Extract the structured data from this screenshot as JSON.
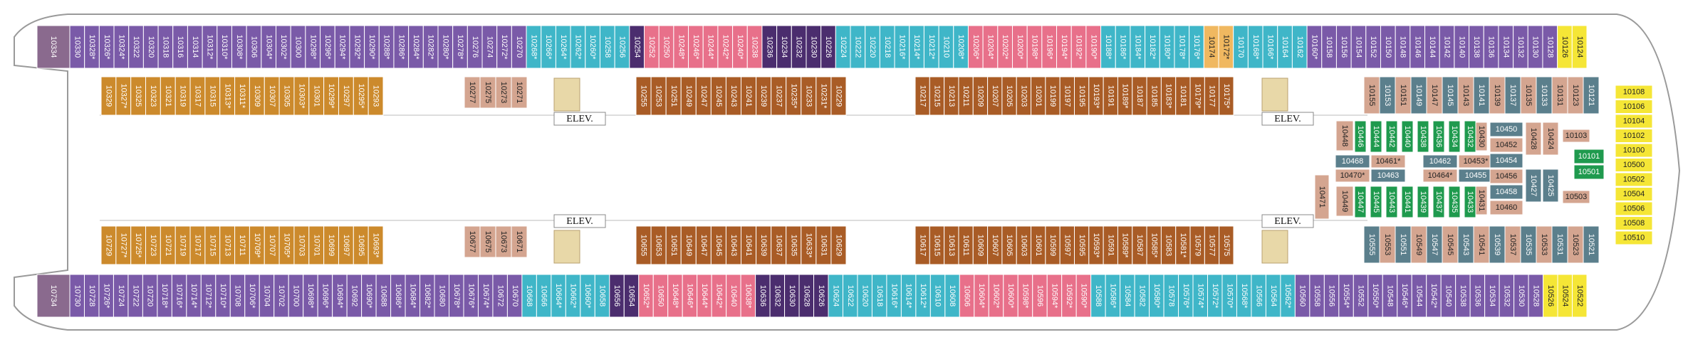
{
  "colors": {
    "purple": "#7a5aa8",
    "teal": "#3fb6c8",
    "pink": "#e8708a",
    "darkpurple": "#4b2d6e",
    "gold": "#cc8a2c",
    "brown": "#a95c26",
    "tan": "#d4a590",
    "slate": "#5b7f8c",
    "green": "#1f9a4e",
    "yellow": "#f5e636",
    "orange": "#f0b860",
    "greypurple": "#8a6a8e",
    "hull": "#9a9a9a"
  },
  "labels": {
    "elev": "ELEV."
  },
  "top_outer": [
    [
      "10330",
      "purple"
    ],
    [
      "10328*",
      "purple"
    ],
    [
      "10326*",
      "purple"
    ],
    [
      "10324*",
      "purple"
    ],
    [
      "10322",
      "purple"
    ],
    [
      "10320",
      "purple"
    ],
    [
      "10318",
      "purple"
    ],
    [
      "10316",
      "purple"
    ],
    [
      "10314",
      "purple"
    ],
    [
      "10312*",
      "purple"
    ],
    [
      "10310*",
      "purple"
    ],
    [
      "10308*",
      "purple"
    ],
    [
      "10306",
      "purple"
    ],
    [
      "10304*",
      "purple"
    ],
    [
      "10302*",
      "purple"
    ],
    [
      "10300",
      "purple"
    ],
    [
      "10298*",
      "purple"
    ],
    [
      "10296*",
      "purple"
    ],
    [
      "10294*",
      "purple"
    ],
    [
      "10292*",
      "purple"
    ],
    [
      "10290*",
      "purple"
    ],
    [
      "10288*",
      "purple"
    ],
    [
      "10286*",
      "purple"
    ],
    [
      "10284*",
      "purple"
    ],
    [
      "10282*",
      "purple"
    ],
    [
      "10280*",
      "purple"
    ],
    [
      "10278*",
      "purple"
    ],
    [
      "10276",
      "purple"
    ],
    [
      "10274",
      "purple"
    ],
    [
      "10272*",
      "purple"
    ],
    [
      "10270",
      "purple"
    ],
    [
      "10268*",
      "teal"
    ],
    [
      "10266*",
      "teal"
    ],
    [
      "10264*",
      "teal"
    ],
    [
      "10262*",
      "teal"
    ],
    [
      "10260*",
      "teal"
    ],
    [
      "10258",
      "teal"
    ],
    [
      "10256",
      "teal"
    ],
    [
      "10254",
      "darkpurple"
    ],
    [
      "10252",
      "pink"
    ],
    [
      "10250",
      "pink"
    ],
    [
      "10248*",
      "pink"
    ],
    [
      "10246*",
      "pink"
    ],
    [
      "10244*",
      "pink"
    ],
    [
      "10242*",
      "pink"
    ],
    [
      "10240*",
      "pink"
    ],
    [
      "10238",
      "pink"
    ],
    [
      "10236",
      "darkpurple"
    ],
    [
      "10234",
      "darkpurple"
    ],
    [
      "10232",
      "darkpurple"
    ],
    [
      "10230",
      "darkpurple"
    ],
    [
      "10226",
      "darkpurple"
    ],
    [
      "10224",
      "teal"
    ],
    [
      "10222",
      "teal"
    ],
    [
      "10220",
      "teal"
    ],
    [
      "10218",
      "teal"
    ],
    [
      "10216*",
      "teal"
    ],
    [
      "10214*",
      "teal"
    ],
    [
      "10212*",
      "teal"
    ],
    [
      "10210",
      "teal"
    ],
    [
      "10208*",
      "teal"
    ],
    [
      "10206*",
      "pink"
    ],
    [
      "10204*",
      "pink"
    ],
    [
      "10202*",
      "pink"
    ],
    [
      "10200*",
      "pink"
    ],
    [
      "10198*",
      "pink"
    ],
    [
      "10196*",
      "pink"
    ],
    [
      "10194*",
      "pink"
    ],
    [
      "10192*",
      "pink"
    ],
    [
      "10190*",
      "pink"
    ],
    [
      "10188*",
      "teal"
    ],
    [
      "10186*",
      "teal"
    ],
    [
      "10184*",
      "teal"
    ],
    [
      "10182*",
      "teal"
    ],
    [
      "10180*",
      "teal"
    ],
    [
      "10178*",
      "teal"
    ],
    [
      "10176*",
      "teal"
    ],
    [
      "10174",
      "orange"
    ],
    [
      "10172*",
      "orange"
    ],
    [
      "10170",
      "teal"
    ],
    [
      "10168*",
      "teal"
    ],
    [
      "10166*",
      "teal"
    ],
    [
      "10164",
      "teal"
    ],
    [
      "10162",
      "teal"
    ],
    [
      "10160*",
      "purple"
    ],
    [
      "10158",
      "purple"
    ],
    [
      "10156",
      "purple"
    ],
    [
      "10154",
      "purple"
    ],
    [
      "10152",
      "purple"
    ],
    [
      "10150",
      "purple"
    ],
    [
      "10148",
      "purple"
    ],
    [
      "10146",
      "purple"
    ],
    [
      "10144",
      "purple"
    ],
    [
      "10142",
      "purple"
    ],
    [
      "10140",
      "purple"
    ],
    [
      "10138",
      "purple"
    ],
    [
      "10136",
      "purple"
    ],
    [
      "10134",
      "purple"
    ],
    [
      "10132",
      "purple"
    ],
    [
      "10130",
      "purple"
    ],
    [
      "10128",
      "purple"
    ],
    [
      "10126",
      "yellow"
    ],
    [
      "10124",
      "yellow"
    ]
  ],
  "bottom_outer": [
    [
      "10730",
      "purple"
    ],
    [
      "10728",
      "purple"
    ],
    [
      "10726*",
      "purple"
    ],
    [
      "10724",
      "purple"
    ],
    [
      "10722",
      "purple"
    ],
    [
      "10720",
      "purple"
    ],
    [
      "10718*",
      "purple"
    ],
    [
      "10716*",
      "purple"
    ],
    [
      "10714*",
      "purple"
    ],
    [
      "10712*",
      "purple"
    ],
    [
      "10710*",
      "purple"
    ],
    [
      "10708",
      "purple"
    ],
    [
      "10706*",
      "purple"
    ],
    [
      "10704",
      "purple"
    ],
    [
      "10702",
      "purple"
    ],
    [
      "10700",
      "purple"
    ],
    [
      "10698*",
      "purple"
    ],
    [
      "10696*",
      "purple"
    ],
    [
      "10694*",
      "purple"
    ],
    [
      "10692",
      "purple"
    ],
    [
      "10690*",
      "purple"
    ],
    [
      "10688",
      "purple"
    ],
    [
      "10686*",
      "purple"
    ],
    [
      "10684*",
      "purple"
    ],
    [
      "10682*",
      "purple"
    ],
    [
      "10680",
      "purple"
    ],
    [
      "10678*",
      "purple"
    ],
    [
      "10676*",
      "purple"
    ],
    [
      "10674*",
      "purple"
    ],
    [
      "10672",
      "purple"
    ],
    [
      "10670",
      "purple"
    ],
    [
      "10668",
      "teal"
    ],
    [
      "10666",
      "teal"
    ],
    [
      "10664*",
      "teal"
    ],
    [
      "10662*",
      "teal"
    ],
    [
      "10660*",
      "teal"
    ],
    [
      "10658",
      "teal"
    ],
    [
      "10656",
      "darkpurple"
    ],
    [
      "10654",
      "darkpurple"
    ],
    [
      "10652*",
      "pink"
    ],
    [
      "10650",
      "pink"
    ],
    [
      "10648*",
      "pink"
    ],
    [
      "10646*",
      "pink"
    ],
    [
      "10644*",
      "pink"
    ],
    [
      "10642*",
      "pink"
    ],
    [
      "10640",
      "pink"
    ],
    [
      "10638*",
      "pink"
    ],
    [
      "10636",
      "darkpurple"
    ],
    [
      "10632",
      "darkpurple"
    ],
    [
      "10630",
      "darkpurple"
    ],
    [
      "10628",
      "darkpurple"
    ],
    [
      "10626",
      "darkpurple"
    ],
    [
      "10624",
      "teal"
    ],
    [
      "10622",
      "teal"
    ],
    [
      "10620",
      "teal"
    ],
    [
      "10618",
      "teal"
    ],
    [
      "10616*",
      "teal"
    ],
    [
      "10614*",
      "teal"
    ],
    [
      "10612*",
      "teal"
    ],
    [
      "10610",
      "teal"
    ],
    [
      "10608",
      "teal"
    ],
    [
      "10606",
      "pink"
    ],
    [
      "10604*",
      "pink"
    ],
    [
      "10602*",
      "pink"
    ],
    [
      "10600*",
      "pink"
    ],
    [
      "10598*",
      "pink"
    ],
    [
      "10596",
      "pink"
    ],
    [
      "10594*",
      "pink"
    ],
    [
      "10592*",
      "pink"
    ],
    [
      "10590*",
      "pink"
    ],
    [
      "10588",
      "teal"
    ],
    [
      "10586*",
      "teal"
    ],
    [
      "10584",
      "teal"
    ],
    [
      "10582",
      "teal"
    ],
    [
      "10580*",
      "teal"
    ],
    [
      "10578",
      "teal"
    ],
    [
      "10576*",
      "teal"
    ],
    [
      "10574*",
      "teal"
    ],
    [
      "10572*",
      "teal"
    ],
    [
      "10570*",
      "teal"
    ],
    [
      "10568*",
      "teal"
    ],
    [
      "10566",
      "teal"
    ],
    [
      "10564",
      "teal"
    ],
    [
      "10562*",
      "teal"
    ],
    [
      "10560",
      "purple"
    ],
    [
      "10558",
      "purple"
    ],
    [
      "10556",
      "purple"
    ],
    [
      "10554*",
      "purple"
    ],
    [
      "10552",
      "purple"
    ],
    [
      "10550*",
      "purple"
    ],
    [
      "10548",
      "purple"
    ],
    [
      "10546*",
      "purple"
    ],
    [
      "10544",
      "purple"
    ],
    [
      "10542*",
      "purple"
    ],
    [
      "10540",
      "purple"
    ],
    [
      "10538",
      "purple"
    ],
    [
      "10536",
      "purple"
    ],
    [
      "10534",
      "purple"
    ],
    [
      "10532",
      "purple"
    ],
    [
      "10530",
      "purple"
    ],
    [
      "10528",
      "purple"
    ],
    [
      "10526",
      "yellow"
    ],
    [
      "10524",
      "yellow"
    ],
    [
      "10522",
      "yellow"
    ]
  ],
  "aft_cabins": {
    "top": "10334",
    "bottom": "10734"
  },
  "top_inner_aft": [
    "10329",
    "10327*",
    "10325",
    "10323",
    "10321",
    "10319",
    "10317",
    "10315",
    "10313*",
    "10311*",
    "10309",
    "10307",
    "10305",
    "10303*",
    "10301",
    "10299*",
    "10297",
    "10295*",
    "10293"
  ],
  "top_inner_aft_small": [
    "10277",
    "10275",
    "10273",
    "10271"
  ],
  "top_inner_mid": [
    "10255",
    "10253",
    "10251",
    "10249",
    "10247",
    "10245",
    "10243",
    "10241",
    "10239",
    "10237",
    "10235*",
    "10233",
    "10231*",
    "10229"
  ],
  "top_inner_fwd": [
    "10217",
    "10215",
    "10213",
    "10211",
    "10209",
    "10207",
    "10205",
    "10203",
    "10201",
    "10199",
    "10197",
    "10195",
    "10193*",
    "10191",
    "10189*",
    "10187",
    "10185",
    "10183*",
    "10181",
    "10179*",
    "10177",
    "10175*"
  ],
  "bottom_inner_aft": [
    "10729",
    "10727*",
    "10725*",
    "10723",
    "10721",
    "10719",
    "10717",
    "10715",
    "10713",
    "10711",
    "10709*",
    "10707",
    "10705*",
    "10703",
    "10701",
    "10699",
    "10697",
    "10695",
    "10693*"
  ],
  "bottom_inner_aft_small": [
    "10677",
    "10675",
    "10673",
    "10671"
  ],
  "bottom_inner_mid": [
    "10655",
    "10653",
    "10651",
    "10649",
    "10647",
    "10645",
    "10643",
    "10641",
    "10639",
    "10637",
    "10635",
    "10633*",
    "10631",
    "10629"
  ],
  "bottom_inner_fwd": [
    "10617",
    "10615",
    "10613",
    "10611",
    "10609",
    "10607",
    "10605",
    "10603",
    "10601",
    "10599",
    "10597",
    "10595",
    "10593*",
    "10591",
    "10589*",
    "10587",
    "10585*",
    "10583",
    "10581*",
    "10579",
    "10577",
    "10575"
  ],
  "fwd_upper_row": [
    [
      "10155",
      "tan"
    ],
    [
      "10153",
      "slate"
    ],
    [
      "10151",
      "tan"
    ],
    [
      "10149",
      "slate"
    ],
    [
      "10147",
      "tan"
    ],
    [
      "10145",
      "slate"
    ],
    [
      "10143",
      "tan"
    ],
    [
      "10141",
      "slate"
    ],
    [
      "10139",
      "tan"
    ],
    [
      "10137",
      "slate"
    ],
    [
      "10135",
      "tan"
    ],
    [
      "10133",
      "slate"
    ],
    [
      "10131",
      "tan"
    ],
    [
      "10123",
      "tan"
    ],
    [
      "10121",
      "slate"
    ]
  ],
  "fwd_lower_row": [
    [
      "10555",
      "slate"
    ],
    [
      "10553",
      "tan"
    ],
    [
      "10551",
      "slate"
    ],
    [
      "10549",
      "tan"
    ],
    [
      "10547",
      "slate"
    ],
    [
      "10545",
      "tan"
    ],
    [
      "10543",
      "slate"
    ],
    [
      "10541",
      "tan"
    ],
    [
      "10539",
      "slate"
    ],
    [
      "10537",
      "tan"
    ],
    [
      "10535",
      "slate"
    ],
    [
      "10533",
      "tan"
    ],
    [
      "10531",
      "slate"
    ],
    [
      "10523",
      "tan"
    ],
    [
      "10521",
      "slate"
    ]
  ],
  "fwd_block": {
    "green_top": [
      "10446",
      "10444",
      "10442",
      "10440",
      "10438",
      "10436",
      "10434",
      "10432"
    ],
    "green_bottom": [
      "10447",
      "10445",
      "10443",
      "10441",
      "10439",
      "10437",
      "10435",
      "10433"
    ],
    "side_tan_top": "10448",
    "side_tan_bottom": "10449",
    "center_cells": [
      [
        "10468",
        "slate"
      ],
      [
        "10461*",
        "tan"
      ],
      [
        "10470*",
        "tan"
      ],
      [
        "10463",
        "slate"
      ],
      [
        "10462",
        "slate"
      ],
      [
        "10453*",
        "tan"
      ],
      [
        "10464*",
        "tan"
      ],
      [
        "10455",
        "slate"
      ]
    ],
    "right_col": [
      "10450",
      "10452",
      "10454",
      "10456",
      "10458",
      "10460"
    ],
    "vertical_tan": [
      "10430",
      "10431"
    ],
    "side_cabins": [
      "10428",
      "10427",
      "10424",
      "10425"
    ],
    "green_pair": [
      "10101",
      "10501"
    ],
    "small_tan": [
      "10103",
      "10503"
    ],
    "lone_10471": "10471"
  },
  "yellow_column": [
    "10108",
    "10106",
    "10104",
    "10102",
    "10100",
    "10500",
    "10502",
    "10504",
    "10506",
    "10508",
    "10510"
  ]
}
